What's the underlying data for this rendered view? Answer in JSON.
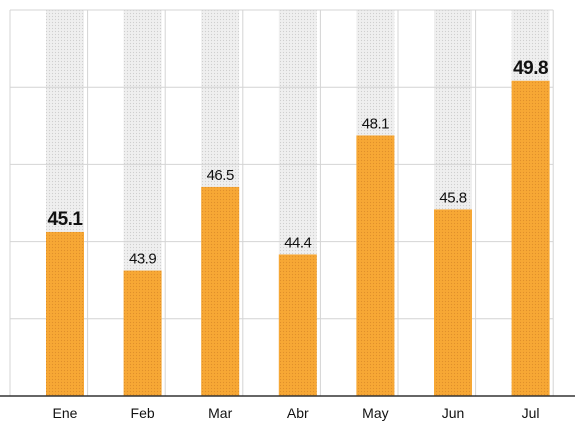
{
  "chart_data": {
    "type": "bar",
    "categories": [
      "Ene",
      "Feb",
      "Mar",
      "Abr",
      "May",
      "Jun",
      "Jul"
    ],
    "values": [
      45.1,
      43.9,
      46.5,
      44.4,
      48.1,
      45.8,
      49.8
    ],
    "color": "#f7a835",
    "ylim": [
      40,
      52
    ],
    "yticks": [
      40,
      42.4,
      44.8,
      47.2,
      49.6,
      52
    ],
    "grid": true
  }
}
